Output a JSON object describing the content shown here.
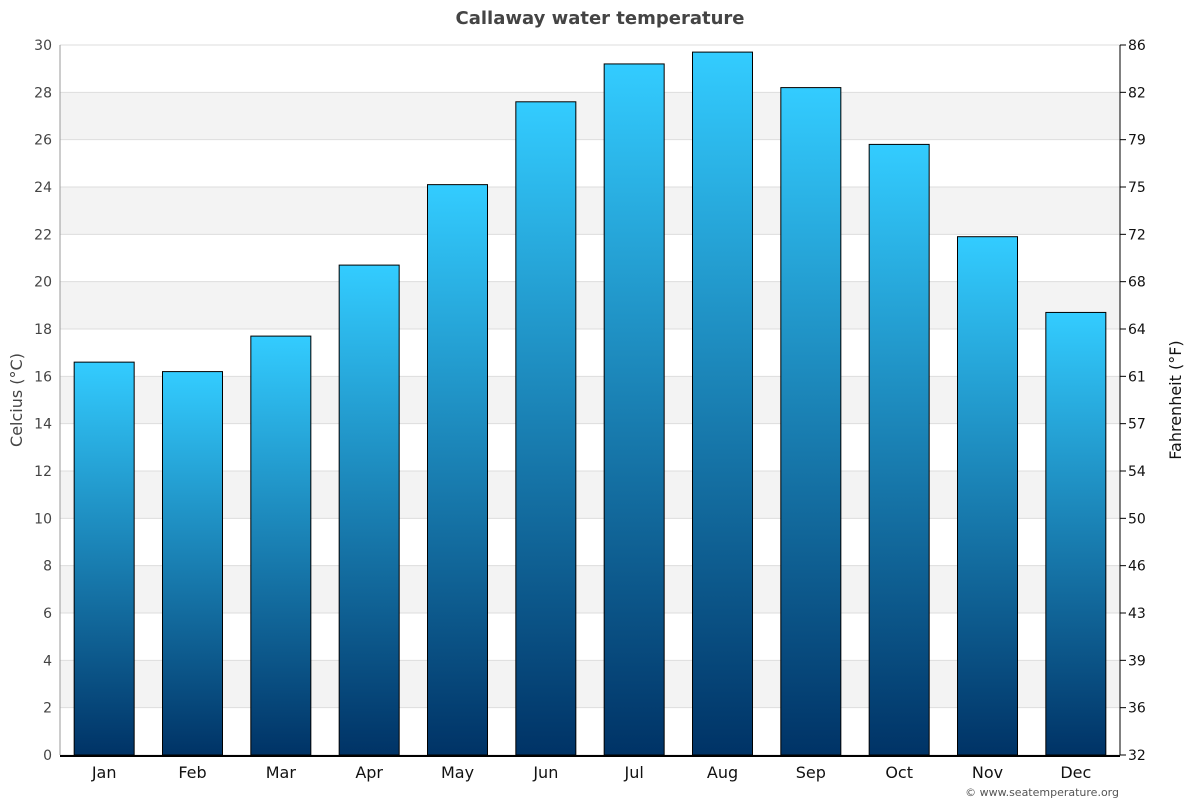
{
  "chart_data": {
    "type": "bar",
    "title": "Callaway water temperature",
    "categories": [
      "Jan",
      "Feb",
      "Mar",
      "Apr",
      "May",
      "Jun",
      "Jul",
      "Aug",
      "Sep",
      "Oct",
      "Nov",
      "Dec"
    ],
    "values": [
      16.6,
      16.2,
      17.7,
      20.7,
      24.1,
      27.6,
      29.2,
      29.7,
      28.2,
      25.8,
      21.9,
      18.7
    ],
    "ylabel": "Celcius (°C)",
    "ylabel_right": "Fahrenheit (°F)",
    "ylim": [
      0,
      30
    ],
    "yticks": [
      0,
      2,
      4,
      6,
      8,
      10,
      12,
      14,
      16,
      18,
      20,
      22,
      24,
      26,
      28,
      30
    ],
    "yticks_right": [
      "32",
      "36",
      "39",
      "43",
      "46",
      "50",
      "54",
      "57",
      "61",
      "64",
      "68",
      "72",
      "75",
      "79",
      "82",
      "86"
    ],
    "grid": true,
    "colors": {
      "bar_top": "#33ccff",
      "bar_bottom": "#003366",
      "band": "#f3f3f3",
      "grid": "#dddddd",
      "text": "#444444"
    }
  },
  "credit": "© www.seatemperature.org"
}
